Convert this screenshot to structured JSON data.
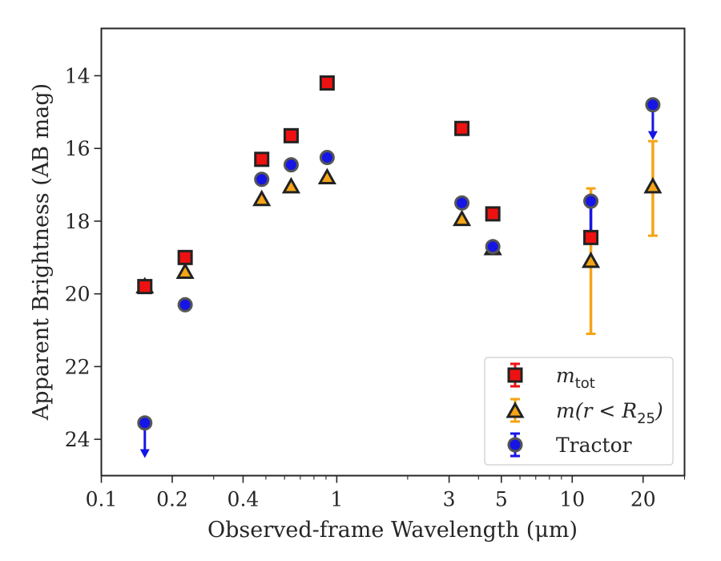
{
  "chart_data": {
    "type": "scatter",
    "title": "",
    "xlabel": "Observed-frame Wavelength (μm)",
    "ylabel": "Apparent Brightness (AB mag)",
    "x_scale": "log",
    "xlim": [
      0.1,
      30
    ],
    "ylim": [
      25,
      12.7
    ],
    "y_inverted": true,
    "x_major_ticks": [
      0.1,
      0.2,
      0.4,
      1,
      3,
      5,
      10,
      20
    ],
    "x_major_tick_labels": [
      "0.1",
      "0.2",
      "0.4",
      "1",
      "3",
      "5",
      "10",
      "20"
    ],
    "y_ticks": [
      14,
      16,
      18,
      20,
      22,
      24
    ],
    "y_tick_labels": [
      "14",
      "16",
      "18",
      "20",
      "22",
      "24"
    ],
    "grid": false,
    "legend": {
      "placement": "lower right",
      "entries": [
        {
          "series": "m_tot",
          "label_main": "m",
          "label_sub": "tot"
        },
        {
          "series": "m_r25",
          "label_main": "m(r < R",
          "label_sub": "25",
          "label_end": ")"
        },
        {
          "series": "tractor",
          "label_main": "Tractor"
        }
      ]
    },
    "series": [
      {
        "key": "m_tot",
        "marker": "square",
        "color": "#ee1111",
        "edgecolor": "#222222",
        "points": [
          {
            "x": 0.153,
            "y": 19.8
          },
          {
            "x": 0.227,
            "y": 19.0
          },
          {
            "x": 0.48,
            "y": 16.3
          },
          {
            "x": 0.64,
            "y": 15.65
          },
          {
            "x": 0.91,
            "y": 14.2
          },
          {
            "x": 3.4,
            "y": 15.45
          },
          {
            "x": 4.6,
            "y": 17.8
          },
          {
            "x": 12.0,
            "y": 18.45
          }
        ]
      },
      {
        "key": "m_r25",
        "marker": "triangle",
        "color": "#f5a416",
        "edgecolor": "#222222",
        "points": [
          {
            "x": 0.153,
            "y": 19.8
          },
          {
            "x": 0.227,
            "y": 19.4
          },
          {
            "x": 0.48,
            "y": 17.4
          },
          {
            "x": 0.64,
            "y": 17.05
          },
          {
            "x": 0.91,
            "y": 16.8
          },
          {
            "x": 3.4,
            "y": 17.95
          },
          {
            "x": 4.6,
            "y": 18.75
          },
          {
            "x": 12.0,
            "y": 19.1,
            "err_low": 17.1,
            "err_high": 21.1
          },
          {
            "x": 22.0,
            "y": 17.05,
            "err_low": 15.8,
            "err_high": 18.4
          }
        ]
      },
      {
        "key": "tractor",
        "marker": "circle",
        "color": "#1515e6",
        "edgecolor": "#555555",
        "points": [
          {
            "x": 0.153,
            "y": 23.55,
            "upper_limit": true,
            "arrow_to": 24.45
          },
          {
            "x": 0.227,
            "y": 20.3
          },
          {
            "x": 0.48,
            "y": 16.85
          },
          {
            "x": 0.64,
            "y": 16.45
          },
          {
            "x": 0.91,
            "y": 16.25
          },
          {
            "x": 3.4,
            "y": 17.5
          },
          {
            "x": 4.6,
            "y": 18.7
          },
          {
            "x": 12.0,
            "y": 17.45,
            "err_low": 17.45,
            "err_high": 18.5
          },
          {
            "x": 22.0,
            "y": 14.8,
            "upper_limit": true,
            "arrow_to": 15.7
          }
        ]
      }
    ]
  }
}
